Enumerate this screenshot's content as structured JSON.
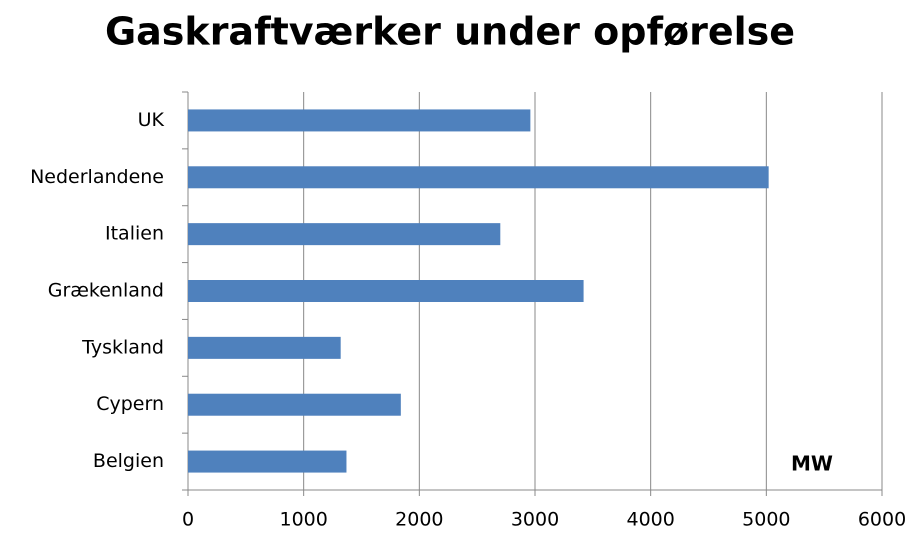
{
  "chart_data": {
    "type": "bar",
    "orientation": "horizontal",
    "title": "Gaskraftværker under opførelse",
    "categories": [
      "UK",
      "Nederlandene",
      "Italien",
      "Grækenland",
      "Tyskland",
      "Cypern",
      "Belgien"
    ],
    "values": [
      2960,
      5020,
      2700,
      3420,
      1320,
      1840,
      1370
    ],
    "color": "#4f81bd",
    "xlim": [
      0,
      6000
    ],
    "xticks": [
      0,
      1000,
      2000,
      3000,
      4000,
      5000,
      6000
    ],
    "grid": true,
    "annotation": "MW"
  }
}
